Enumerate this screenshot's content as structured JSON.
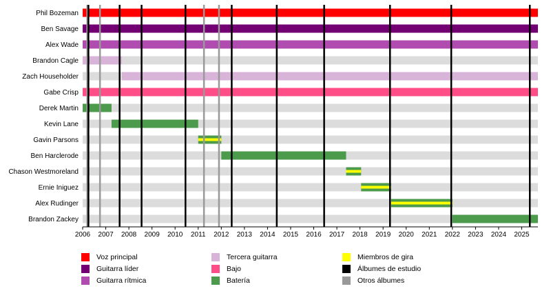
{
  "chart_data": {
    "type": "timeline",
    "x_range": [
      2006,
      2025.7
    ],
    "x_ticks": [
      2006,
      2007,
      2008,
      2009,
      2010,
      2011,
      2012,
      2013,
      2014,
      2015,
      2016,
      2017,
      2018,
      2019,
      2020,
      2021,
      2022,
      2023,
      2024,
      2025
    ],
    "grid": "alternating row bands",
    "roles": {
      "voz": {
        "label": "Voz principal",
        "color": "#ff0000"
      },
      "lider": {
        "label": "Guitarra líder",
        "color": "#730073"
      },
      "ritmica": {
        "label": "Guitarra rítmica",
        "color": "#b04cb0"
      },
      "tercera": {
        "label": "Tercera guitarra",
        "color": "#d8b4d8"
      },
      "bajo": {
        "label": "Bajo",
        "color": "#ff4d88"
      },
      "bateria": {
        "label": "Batería",
        "color": "#4c9a4c"
      },
      "gira": {
        "label": "Miembros de gira",
        "color": "#ffff00"
      },
      "estudio": {
        "label": "Álbumes de estudio",
        "color": "#000000"
      },
      "otros": {
        "label": "Otros álbumes",
        "color": "#999999"
      }
    },
    "members": [
      {
        "name": "Phil Bozeman",
        "periods": [
          {
            "start": 2006,
            "end": 2025.7,
            "role": "voz"
          }
        ]
      },
      {
        "name": "Ben Savage",
        "periods": [
          {
            "start": 2006,
            "end": 2025.7,
            "role": "lider"
          }
        ]
      },
      {
        "name": "Alex Wade",
        "periods": [
          {
            "start": 2006,
            "end": 2025.7,
            "role": "ritmica"
          }
        ]
      },
      {
        "name": "Brandon Cagle",
        "periods": [
          {
            "start": 2006,
            "end": 2007.7,
            "role": "tercera"
          }
        ]
      },
      {
        "name": "Zach Householder",
        "periods": [
          {
            "start": 2007.7,
            "end": 2025.7,
            "role": "tercera"
          }
        ]
      },
      {
        "name": "Gabe Crisp",
        "periods": [
          {
            "start": 2006,
            "end": 2025.7,
            "role": "bajo"
          }
        ]
      },
      {
        "name": "Derek Martin",
        "periods": [
          {
            "start": 2006,
            "end": 2007.25,
            "role": "bateria"
          }
        ]
      },
      {
        "name": "Kevin Lane",
        "periods": [
          {
            "start": 2007.25,
            "end": 2011.0,
            "role": "bateria"
          }
        ]
      },
      {
        "name": "Gavin Parsons",
        "periods": [
          {
            "start": 2011.0,
            "end": 2012.0,
            "role": "bateria",
            "touring": true
          }
        ]
      },
      {
        "name": "Ben Harclerode",
        "periods": [
          {
            "start": 2012.0,
            "end": 2017.4,
            "role": "bateria"
          }
        ]
      },
      {
        "name": "Chason Westmoreland",
        "periods": [
          {
            "start": 2017.4,
            "end": 2018.05,
            "role": "bateria",
            "touring": true
          }
        ]
      },
      {
        "name": "Ernie Iniguez",
        "periods": [
          {
            "start": 2018.05,
            "end": 2019.35,
            "role": "bateria",
            "touring": true
          }
        ]
      },
      {
        "name": "Alex Rudinger",
        "periods": [
          {
            "start": 2019.35,
            "end": 2022.0,
            "role": "bateria",
            "touring": true
          }
        ]
      },
      {
        "name": "Brandon Zackey",
        "periods": [
          {
            "start": 2022.0,
            "end": 2025.7,
            "role": "bateria"
          }
        ]
      }
    ],
    "studio_albums": [
      2006.25,
      2007.6,
      2008.55,
      2010.45,
      2012.45,
      2014.4,
      2016.45,
      2019.3,
      2021.95,
      2025.35
    ],
    "other_albums": [
      2006.2,
      2006.75,
      2011.25,
      2011.9
    ]
  },
  "legend": [
    {
      "key": "voz",
      "label": "Voz principal"
    },
    {
      "key": "lider",
      "label": "Guitarra líder"
    },
    {
      "key": "ritmica",
      "label": "Guitarra rítmica"
    },
    {
      "key": "tercera",
      "label": "Tercera guitarra"
    },
    {
      "key": "bajo",
      "label": "Bajo"
    },
    {
      "key": "bateria",
      "label": "Batería"
    },
    {
      "key": "gira",
      "label": "Miembros de gira"
    },
    {
      "key": "estudio",
      "label": "Álbumes de estudio"
    },
    {
      "key": "otros",
      "label": "Otros álbumes"
    }
  ]
}
